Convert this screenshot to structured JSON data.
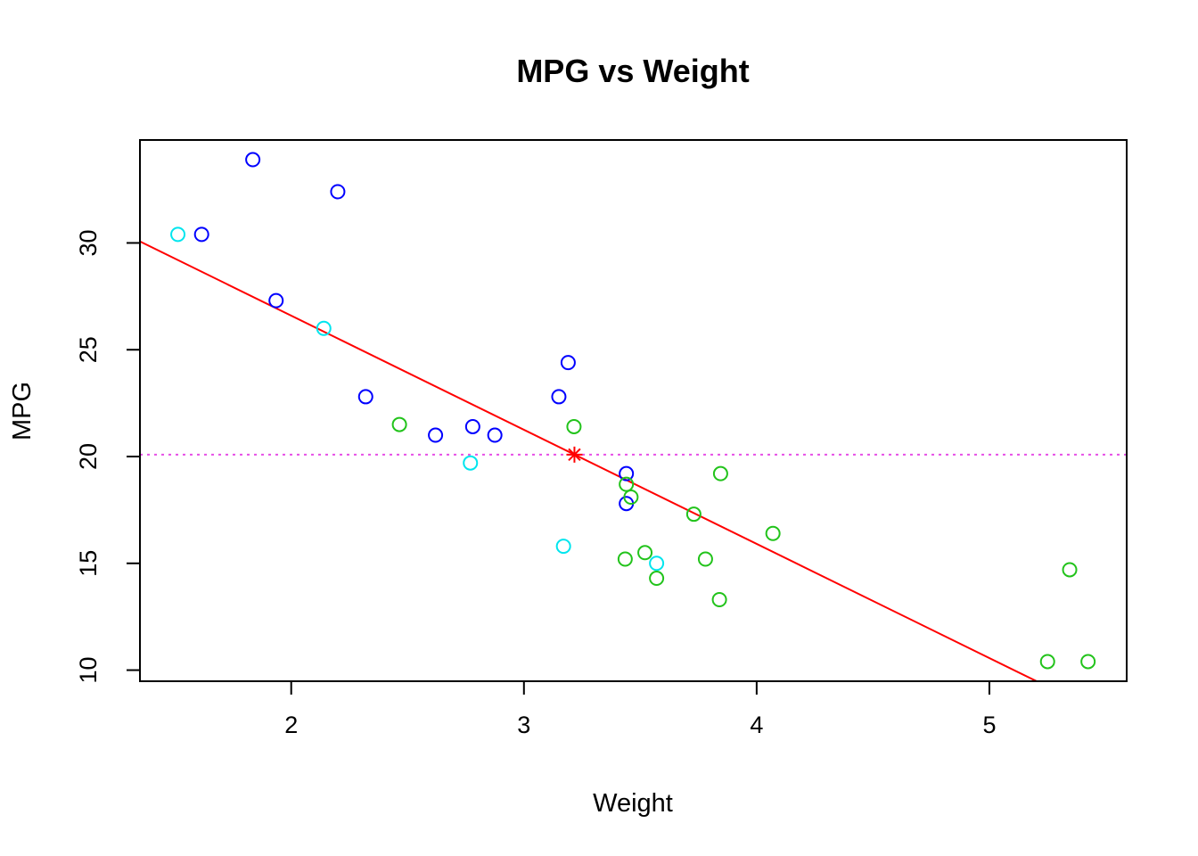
{
  "chart_data": {
    "type": "scatter",
    "title": "MPG vs Weight",
    "xlabel": "Weight",
    "ylabel": "MPG",
    "xlim": [
      1.35,
      5.59
    ],
    "ylim": [
      9.48,
      34.82
    ],
    "xticks": [
      2,
      3,
      4,
      5
    ],
    "yticks": [
      10,
      15,
      20,
      25,
      30
    ],
    "grid": false,
    "legend": null,
    "colors": {
      "blue": "#0000ff",
      "cyan": "#00e5ee",
      "green": "#22c31b",
      "red": "#ff0000",
      "magenta": "#e64fe6"
    },
    "points": [
      {
        "x": 1.835,
        "y": 33.9,
        "color": "blue"
      },
      {
        "x": 2.2,
        "y": 32.4,
        "color": "blue"
      },
      {
        "x": 1.615,
        "y": 30.4,
        "color": "blue"
      },
      {
        "x": 1.935,
        "y": 27.3,
        "color": "blue"
      },
      {
        "x": 2.32,
        "y": 22.8,
        "color": "blue"
      },
      {
        "x": 2.62,
        "y": 21.0,
        "color": "blue"
      },
      {
        "x": 2.875,
        "y": 21.0,
        "color": "blue"
      },
      {
        "x": 2.78,
        "y": 21.4,
        "color": "blue"
      },
      {
        "x": 3.19,
        "y": 24.4,
        "color": "blue"
      },
      {
        "x": 3.15,
        "y": 22.8,
        "color": "blue"
      },
      {
        "x": 3.44,
        "y": 19.2,
        "color": "blue"
      },
      {
        "x": 3.44,
        "y": 17.8,
        "color": "blue"
      },
      {
        "x": 1.513,
        "y": 30.4,
        "color": "cyan"
      },
      {
        "x": 2.14,
        "y": 26.0,
        "color": "cyan"
      },
      {
        "x": 2.77,
        "y": 19.7,
        "color": "cyan"
      },
      {
        "x": 3.17,
        "y": 15.8,
        "color": "cyan"
      },
      {
        "x": 3.57,
        "y": 15.0,
        "color": "cyan"
      },
      {
        "x": 2.465,
        "y": 21.5,
        "color": "green"
      },
      {
        "x": 3.215,
        "y": 21.4,
        "color": "green"
      },
      {
        "x": 3.44,
        "y": 18.7,
        "color": "green"
      },
      {
        "x": 3.46,
        "y": 18.1,
        "color": "green"
      },
      {
        "x": 3.845,
        "y": 19.2,
        "color": "green"
      },
      {
        "x": 3.73,
        "y": 17.3,
        "color": "green"
      },
      {
        "x": 4.07,
        "y": 16.4,
        "color": "green"
      },
      {
        "x": 3.435,
        "y": 15.2,
        "color": "green"
      },
      {
        "x": 3.52,
        "y": 15.5,
        "color": "green"
      },
      {
        "x": 3.78,
        "y": 15.2,
        "color": "green"
      },
      {
        "x": 3.57,
        "y": 14.3,
        "color": "green"
      },
      {
        "x": 3.84,
        "y": 13.3,
        "color": "green"
      },
      {
        "x": 5.345,
        "y": 14.7,
        "color": "green"
      },
      {
        "x": 5.25,
        "y": 10.4,
        "color": "green"
      },
      {
        "x": 5.424,
        "y": 10.4,
        "color": "green"
      }
    ],
    "regression_line": {
      "intercept": 37.285,
      "slope": -5.344,
      "color": "red"
    },
    "mean_hline": {
      "y": 20.09,
      "color": "magenta",
      "style": "dotted"
    },
    "mean_point": {
      "x": 3.217,
      "y": 20.09,
      "color": "red",
      "marker": "asterisk"
    }
  }
}
